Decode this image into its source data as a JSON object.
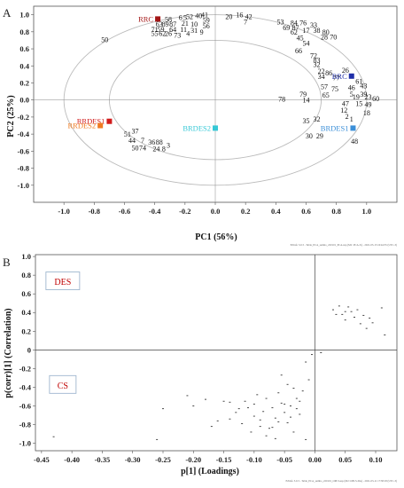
{
  "panels": {
    "a": {
      "letter": "A",
      "footnote": "EZinfo 3.0.3 - Table_PCA_samho_220101_PCA.usp (M1: PCA-X) - 2021-03-13 16:44:35 (UTC-3)"
    },
    "b": {
      "letter": "B",
      "footnote": "EZinfo 3.0.3 - Table_PCA_samho_220101_OPLS.usp (M2: OPLS-DA) - 2021-03-11 17:38:18 (UTC-3)"
    }
  },
  "chart_data": [
    {
      "type": "scatter",
      "title": "",
      "xlabel": "PC1 (56%)",
      "ylabel": "PC2 (25%)",
      "xlim": [
        -1.2,
        1.2
      ],
      "ylim": [
        -1.2,
        1.1
      ],
      "xticks": [
        -1.0,
        -0.8,
        -0.6,
        -0.4,
        -0.2,
        0.0,
        0.2,
        0.4,
        0.6,
        0.8,
        1.0
      ],
      "yticks": [
        1.0,
        0.8,
        0.6,
        0.4,
        0.2,
        0.0,
        -0.2,
        -0.4,
        -0.6,
        -0.8,
        -1.0
      ],
      "grid": false,
      "ellipses": [
        {
          "rx": 1.0,
          "ry": 1.0
        },
        {
          "rx": 0.7,
          "ry": 0.7
        }
      ],
      "groups": [
        {
          "label": "RRC",
          "x": -0.38,
          "y": 0.95,
          "color": "#a31515",
          "label_side": "left"
        },
        {
          "label": "BRC",
          "x": 0.9,
          "y": 0.28,
          "color": "#1f2fa8",
          "label_side": "left"
        },
        {
          "label": "RRDES1",
          "x": -0.7,
          "y": -0.25,
          "color": "#d11b1b",
          "label_side": "left"
        },
        {
          "label": "RRDES2",
          "x": -0.76,
          "y": -0.3,
          "color": "#f07b22",
          "label_side": "left"
        },
        {
          "label": "BRDES2",
          "x": 0.0,
          "y": -0.33,
          "color": "#36c8d6",
          "label_side": "left"
        },
        {
          "label": "BRDES1",
          "x": 0.91,
          "y": -0.33,
          "color": "#3b8fd8",
          "label_side": "left"
        }
      ],
      "points": [
        {
          "label": "52",
          "x": -0.17,
          "y": 0.98
        },
        {
          "label": "40",
          "x": -0.11,
          "y": 0.99
        },
        {
          "label": "41",
          "x": -0.07,
          "y": 1.0
        },
        {
          "label": "6",
          "x": -0.23,
          "y": 0.97
        },
        {
          "label": "5",
          "x": -0.2,
          "y": 0.97
        },
        {
          "label": "58",
          "x": -0.31,
          "y": 0.95
        },
        {
          "label": "59",
          "x": -0.06,
          "y": 0.94
        },
        {
          "label": "63",
          "x": -0.37,
          "y": 0.89
        },
        {
          "label": "89",
          "x": -0.33,
          "y": 0.89
        },
        {
          "label": "87",
          "x": -0.28,
          "y": 0.89
        },
        {
          "label": "21",
          "x": -0.2,
          "y": 0.9
        },
        {
          "label": "10",
          "x": -0.14,
          "y": 0.89
        },
        {
          "label": "56",
          "x": -0.06,
          "y": 0.87
        },
        {
          "label": "71",
          "x": -0.4,
          "y": 0.83
        },
        {
          "label": "59",
          "x": -0.36,
          "y": 0.83
        },
        {
          "label": "64",
          "x": -0.28,
          "y": 0.83
        },
        {
          "label": "11",
          "x": -0.21,
          "y": 0.83
        },
        {
          "label": "31",
          "x": -0.14,
          "y": 0.82
        },
        {
          "label": "9",
          "x": -0.09,
          "y": 0.8
        },
        {
          "label": "55",
          "x": -0.4,
          "y": 0.78
        },
        {
          "label": "62",
          "x": -0.35,
          "y": 0.78
        },
        {
          "label": "26",
          "x": -0.31,
          "y": 0.78
        },
        {
          "label": "73",
          "x": -0.25,
          "y": 0.76
        },
        {
          "label": "4",
          "x": -0.18,
          "y": 0.78
        },
        {
          "label": "50",
          "x": -0.73,
          "y": 0.71
        },
        {
          "label": "20",
          "x": 0.09,
          "y": 0.98
        },
        {
          "label": "16",
          "x": 0.16,
          "y": 1.0
        },
        {
          "label": "42",
          "x": 0.22,
          "y": 0.98
        },
        {
          "label": "7",
          "x": 0.2,
          "y": 0.92
        },
        {
          "label": "53",
          "x": 0.43,
          "y": 0.92
        },
        {
          "label": "84",
          "x": 0.52,
          "y": 0.91
        },
        {
          "label": "76",
          "x": 0.58,
          "y": 0.91
        },
        {
          "label": "33",
          "x": 0.65,
          "y": 0.88
        },
        {
          "label": "69",
          "x": 0.47,
          "y": 0.85
        },
        {
          "label": "87",
          "x": 0.53,
          "y": 0.85
        },
        {
          "label": "17",
          "x": 0.6,
          "y": 0.82
        },
        {
          "label": "38",
          "x": 0.67,
          "y": 0.82
        },
        {
          "label": "80",
          "x": 0.73,
          "y": 0.8
        },
        {
          "label": "62",
          "x": 0.52,
          "y": 0.8
        },
        {
          "label": "28",
          "x": 0.72,
          "y": 0.74
        },
        {
          "label": "70",
          "x": 0.78,
          "y": 0.74
        },
        {
          "label": "45",
          "x": 0.56,
          "y": 0.73
        },
        {
          "label": "54",
          "x": 0.6,
          "y": 0.67
        },
        {
          "label": "66",
          "x": 0.55,
          "y": 0.58
        },
        {
          "label": "72",
          "x": 0.65,
          "y": 0.52
        },
        {
          "label": "26",
          "x": 0.86,
          "y": 0.35
        },
        {
          "label": "83",
          "x": 0.67,
          "y": 0.47
        },
        {
          "label": "32",
          "x": 0.67,
          "y": 0.42
        },
        {
          "label": "22",
          "x": 0.7,
          "y": 0.34
        },
        {
          "label": "34",
          "x": 0.7,
          "y": 0.28
        },
        {
          "label": "86",
          "x": 0.75,
          "y": 0.32
        },
        {
          "label": "77",
          "x": 0.8,
          "y": 0.26
        },
        {
          "label": "61",
          "x": 0.95,
          "y": 0.22
        },
        {
          "label": "43",
          "x": 0.98,
          "y": 0.17
        },
        {
          "label": "46",
          "x": 0.9,
          "y": 0.15
        },
        {
          "label": "57",
          "x": 0.72,
          "y": 0.16
        },
        {
          "label": "75",
          "x": 0.79,
          "y": 0.13
        },
        {
          "label": "5",
          "x": 0.9,
          "y": 0.07
        },
        {
          "label": "39",
          "x": 0.98,
          "y": 0.07
        },
        {
          "label": "79",
          "x": 0.58,
          "y": 0.07
        },
        {
          "label": "65",
          "x": 0.73,
          "y": 0.06
        },
        {
          "label": "19",
          "x": 0.93,
          "y": 0.04
        },
        {
          "label": "23",
          "x": 1.01,
          "y": 0.04
        },
        {
          "label": "60",
          "x": 1.06,
          "y": 0.02
        },
        {
          "label": "78",
          "x": 0.44,
          "y": 0.01
        },
        {
          "label": "14",
          "x": 0.6,
          "y": 0.0
        },
        {
          "label": "47",
          "x": 0.86,
          "y": -0.04
        },
        {
          "label": "15",
          "x": 0.95,
          "y": -0.04
        },
        {
          "label": "49",
          "x": 1.01,
          "y": -0.05
        },
        {
          "label": "12",
          "x": 0.85,
          "y": -0.12
        },
        {
          "label": "18",
          "x": 1.0,
          "y": -0.15
        },
        {
          "label": "2",
          "x": 0.87,
          "y": -0.19
        },
        {
          "label": "1",
          "x": 0.9,
          "y": -0.22
        },
        {
          "label": "35",
          "x": 0.6,
          "y": -0.24
        },
        {
          "label": "32",
          "x": 0.67,
          "y": -0.22
        },
        {
          "label": "30",
          "x": 0.62,
          "y": -0.42
        },
        {
          "label": "29",
          "x": 0.69,
          "y": -0.42
        },
        {
          "label": "48",
          "x": 0.92,
          "y": -0.48
        },
        {
          "label": "51",
          "x": -0.58,
          "y": -0.4
        },
        {
          "label": "37",
          "x": -0.53,
          "y": -0.36
        },
        {
          "label": "44",
          "x": -0.55,
          "y": -0.47
        },
        {
          "label": "7",
          "x": -0.48,
          "y": -0.47
        },
        {
          "label": "50",
          "x": -0.53,
          "y": -0.56
        },
        {
          "label": "74",
          "x": -0.48,
          "y": -0.56
        },
        {
          "label": "36",
          "x": -0.42,
          "y": -0.49
        },
        {
          "label": "88",
          "x": -0.37,
          "y": -0.49
        },
        {
          "label": "24",
          "x": -0.39,
          "y": -0.57
        },
        {
          "label": "3",
          "x": -0.31,
          "y": -0.53
        },
        {
          "label": "8",
          "x": -0.34,
          "y": -0.57
        }
      ]
    },
    {
      "type": "scatter",
      "title": "",
      "xlabel": "p[1] (Loadings)",
      "ylabel": "p(corr)[1] (Correlation)",
      "xlim": [
        -0.46,
        0.135
      ],
      "ylim": [
        -1.08,
        1.02
      ],
      "xticks": [
        -0.45,
        -0.4,
        -0.35,
        -0.3,
        -0.25,
        -0.2,
        -0.15,
        -0.1,
        -0.05,
        0.0,
        0.05,
        0.1
      ],
      "xtick_labels": [
        "-0.45",
        "-0.40",
        "-0.35",
        "-0.30",
        "-0.25",
        "-0.20",
        "-0.15",
        "-0.10",
        "-0.05",
        "0.00",
        "0.05",
        "0.10"
      ],
      "yticks": [
        1.0,
        0.8,
        0.6,
        0.4,
        0.2,
        0.0,
        -0.2,
        -0.4,
        -0.6,
        -0.8,
        -1.0
      ],
      "ytick_labels": [
        "1.0",
        "0.8",
        "0.6",
        "0.4",
        "0.2",
        "0",
        "-0.2",
        "-0.4",
        "-0.6",
        "-0.8",
        "-1.0"
      ],
      "grid": false,
      "annotations": [
        {
          "text": "DES",
          "x": -0.415,
          "y": 0.73
        },
        {
          "text": "CS",
          "x": -0.415,
          "y": -0.38
        }
      ],
      "loadings": [
        [
          -0.43,
          -0.93
        ],
        [
          -0.26,
          -0.96
        ],
        [
          -0.25,
          -0.63
        ],
        [
          -0.21,
          -0.49
        ],
        [
          -0.2,
          -0.6
        ],
        [
          -0.18,
          -0.53
        ],
        [
          -0.17,
          -0.82
        ],
        [
          -0.16,
          -0.76
        ],
        [
          -0.15,
          -0.55
        ],
        [
          -0.14,
          -0.74
        ],
        [
          -0.13,
          -0.67
        ],
        [
          -0.12,
          -0.79
        ],
        [
          -0.11,
          -0.62
        ],
        [
          -0.1,
          -0.71
        ],
        [
          -0.1,
          -0.58
        ],
        [
          -0.09,
          -0.75
        ],
        [
          -0.085,
          -0.66
        ],
        [
          -0.08,
          -0.52
        ],
        [
          -0.075,
          -0.84
        ],
        [
          -0.07,
          -0.62
        ],
        [
          -0.065,
          -0.73
        ],
        [
          -0.06,
          -0.46
        ],
        [
          -0.055,
          -0.57
        ],
        [
          -0.05,
          -0.67
        ],
        [
          -0.045,
          -0.78
        ],
        [
          -0.04,
          -0.6
        ],
        [
          -0.035,
          -0.88
        ],
        [
          -0.03,
          -0.52
        ],
        [
          -0.025,
          -0.69
        ],
        [
          -0.02,
          -0.44
        ],
        [
          -0.015,
          -0.96
        ],
        [
          -0.01,
          -0.32
        ],
        [
          -0.055,
          -0.27
        ],
        [
          -0.045,
          -0.37
        ],
        [
          -0.035,
          -0.41
        ],
        [
          -0.025,
          -0.55
        ],
        [
          -0.095,
          -0.48
        ],
        [
          -0.105,
          -0.88
        ],
        [
          -0.115,
          -0.55
        ],
        [
          -0.125,
          -0.63
        ],
        [
          -0.14,
          -0.56
        ],
        [
          -0.08,
          -0.92
        ],
        [
          -0.065,
          -0.95
        ],
        [
          -0.05,
          -0.58
        ],
        [
          -0.04,
          -0.72
        ],
        [
          -0.09,
          -0.82
        ],
        [
          -0.07,
          -0.83
        ],
        [
          -0.06,
          -0.77
        ],
        [
          -0.03,
          -0.63
        ],
        [
          -0.015,
          -0.13
        ],
        [
          -0.005,
          -0.05
        ],
        [
          0.01,
          -0.03
        ],
        [
          0.03,
          0.43
        ],
        [
          0.04,
          0.47
        ],
        [
          0.045,
          0.38
        ],
        [
          0.05,
          0.32
        ],
        [
          0.055,
          0.46
        ],
        [
          0.06,
          0.41
        ],
        [
          0.065,
          0.35
        ],
        [
          0.07,
          0.43
        ],
        [
          0.075,
          0.28
        ],
        [
          0.08,
          0.37
        ],
        [
          0.085,
          0.23
        ],
        [
          0.09,
          0.34
        ],
        [
          0.095,
          0.29
        ],
        [
          0.11,
          0.45
        ],
        [
          0.115,
          0.16
        ],
        [
          0.035,
          0.38
        ],
        [
          0.05,
          0.41
        ]
      ]
    }
  ]
}
